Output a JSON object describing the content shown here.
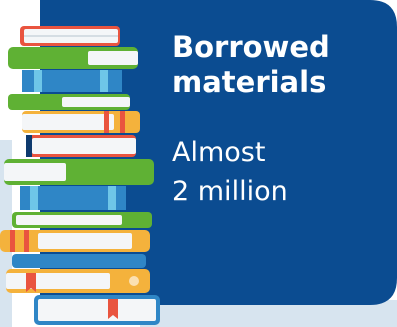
{
  "infographic": {
    "title_line1": "Borrowed",
    "title_line2": "materials",
    "stat_line1": "Almost",
    "stat_line2": "2 million",
    "icon": "book-stack-icon",
    "colors": {
      "card_background": "#0b4c91",
      "backdrop": "#d7e4ef",
      "text": "#ffffff"
    }
  }
}
